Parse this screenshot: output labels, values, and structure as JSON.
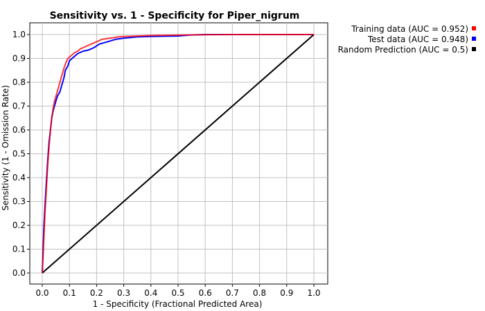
{
  "chart_data": {
    "type": "line",
    "title": "Sensitivity vs. 1 - Specificity for Piper_nigrum",
    "xlabel": "1 - Specificity  (Fractional Predicted Area)",
    "ylabel": "Sensitivity  (1 - Omission Rate)",
    "xlim": [
      0,
      1
    ],
    "ylim": [
      0,
      1
    ],
    "xticks": [
      "0.0",
      "0.1",
      "0.2",
      "0.3",
      "0.4",
      "0.5",
      "0.6",
      "0.7",
      "0.8",
      "0.9",
      "1.0"
    ],
    "yticks": [
      "0.0",
      "0.1",
      "0.2",
      "0.3",
      "0.4",
      "0.5",
      "0.6",
      "0.7",
      "0.8",
      "0.9",
      "1.0"
    ],
    "grid": true,
    "legend_position": "top-right-outside",
    "series": [
      {
        "name": "Training data (AUC = 0.952)",
        "color": "#ff0000",
        "x": [
          0,
          0.005,
          0.01,
          0.015,
          0.02,
          0.025,
          0.03,
          0.035,
          0.04,
          0.045,
          0.05,
          0.055,
          0.06,
          0.065,
          0.07,
          0.075,
          0.08,
          0.085,
          0.09,
          0.095,
          0.1,
          0.11,
          0.12,
          0.13,
          0.14,
          0.15,
          0.16,
          0.17,
          0.18,
          0.2,
          0.22,
          0.25,
          0.28,
          0.3,
          0.35,
          0.4,
          0.5,
          0.6,
          0.7,
          0.8,
          0.9,
          1.0
        ],
        "y": [
          0,
          0.12,
          0.25,
          0.35,
          0.45,
          0.53,
          0.6,
          0.65,
          0.69,
          0.72,
          0.74,
          0.76,
          0.78,
          0.8,
          0.82,
          0.84,
          0.86,
          0.875,
          0.89,
          0.9,
          0.905,
          0.915,
          0.925,
          0.93,
          0.94,
          0.945,
          0.95,
          0.955,
          0.96,
          0.97,
          0.98,
          0.985,
          0.99,
          0.992,
          0.994,
          0.996,
          0.998,
          0.999,
          1.0,
          1.0,
          1.0,
          1.0
        ]
      },
      {
        "name": "Test data (AUC = 0.948)",
        "color": "#0000ff",
        "x": [
          0,
          0.003,
          0.006,
          0.01,
          0.015,
          0.02,
          0.025,
          0.03,
          0.035,
          0.04,
          0.045,
          0.05,
          0.055,
          0.06,
          0.065,
          0.07,
          0.075,
          0.08,
          0.085,
          0.09,
          0.095,
          0.1,
          0.11,
          0.12,
          0.13,
          0.15,
          0.17,
          0.19,
          0.21,
          0.24,
          0.27,
          0.3,
          0.35,
          0.4,
          0.5,
          0.54,
          0.6,
          0.7,
          0.8,
          0.9,
          1.0
        ],
        "y": [
          0,
          0.1,
          0.2,
          0.28,
          0.38,
          0.47,
          0.55,
          0.6,
          0.65,
          0.68,
          0.7,
          0.72,
          0.74,
          0.75,
          0.76,
          0.78,
          0.8,
          0.82,
          0.85,
          0.86,
          0.87,
          0.89,
          0.9,
          0.91,
          0.92,
          0.93,
          0.935,
          0.945,
          0.96,
          0.97,
          0.98,
          0.985,
          0.99,
          0.992,
          0.994,
          0.998,
          1.0,
          1.0,
          1.0,
          1.0,
          1.0
        ]
      },
      {
        "name": "Random Prediction (AUC = 0.5)",
        "color": "#000000",
        "x": [
          0,
          1
        ],
        "y": [
          0,
          1
        ]
      }
    ]
  }
}
